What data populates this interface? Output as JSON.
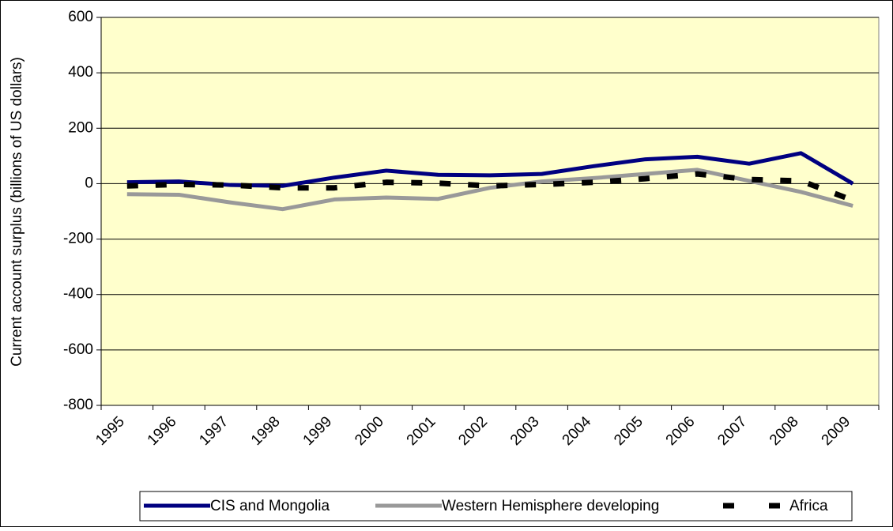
{
  "chart_data": {
    "type": "line",
    "y_label": "Current account surplus (billions of US dollars)",
    "categories": [
      "1995",
      "1996",
      "1997",
      "1998",
      "1999",
      "2000",
      "2001",
      "2002",
      "2003",
      "2004",
      "2005",
      "2006",
      "2007",
      "2008",
      "2009"
    ],
    "series": [
      {
        "name": "CIS and Mongolia",
        "color": "#000080",
        "style": "solid",
        "values": [
          5,
          8,
          -5,
          -8,
          22,
          47,
          32,
          30,
          35,
          63,
          88,
          97,
          72,
          110,
          0
        ]
      },
      {
        "name": "Western Hemisphere developing",
        "color": "#999999",
        "style": "solid",
        "values": [
          -38,
          -40,
          -68,
          -92,
          -57,
          -50,
          -55,
          -15,
          8,
          20,
          35,
          50,
          10,
          -30,
          -80
        ]
      },
      {
        "name": "Africa",
        "color": "#000000",
        "style": "dashed",
        "values": [
          -8,
          -3,
          -5,
          -15,
          -15,
          5,
          2,
          -8,
          -3,
          5,
          18,
          35,
          15,
          10,
          -60
        ]
      }
    ],
    "ylim": [
      -800,
      600
    ],
    "yticks": [
      -800,
      -600,
      -400,
      -200,
      0,
      200,
      400,
      600
    ],
    "grid": true,
    "plot_background": "#ffffcc",
    "legend": "bottom"
  }
}
